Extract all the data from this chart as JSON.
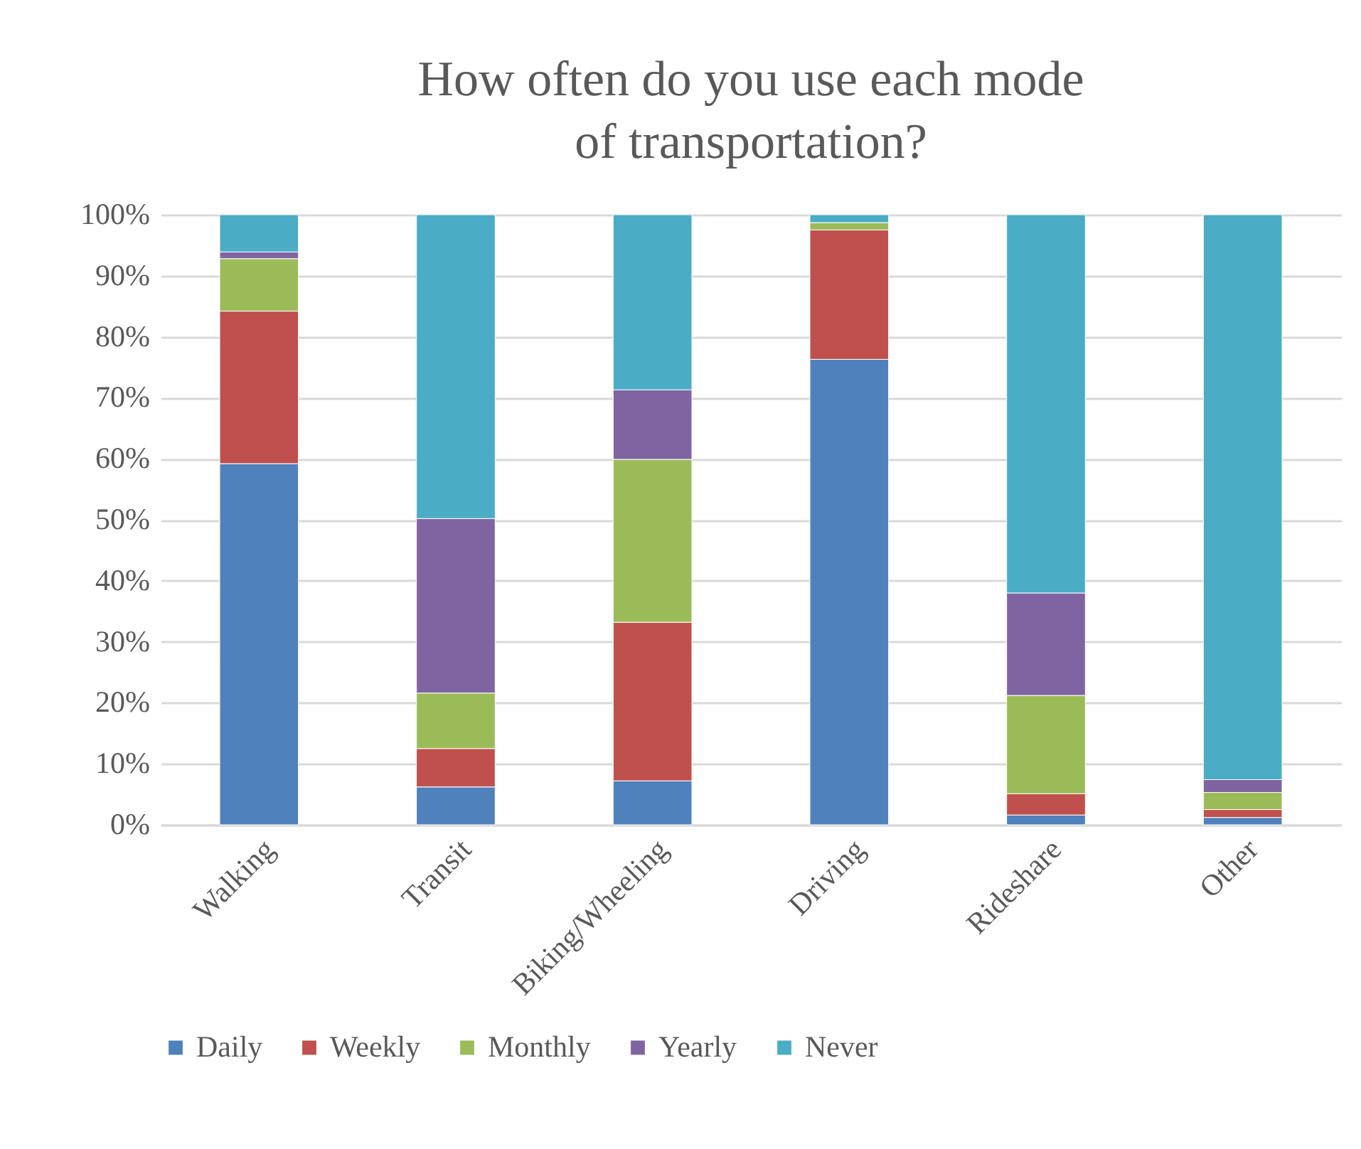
{
  "chart_data": {
    "type": "bar",
    "title": "How often do you use each mode of transportation?",
    "stacked": true,
    "categories": [
      "Walking",
      "Transit",
      "Biking/Wheeling",
      "Driving",
      "Rideshare",
      "Other"
    ],
    "series": [
      {
        "name": "Daily",
        "color": "#4f81bd",
        "values": [
          59.2,
          6.2,
          7.2,
          76.3,
          1.6,
          1.2
        ]
      },
      {
        "name": "Weekly",
        "color": "#c0504d",
        "values": [
          25.0,
          6.3,
          26.0,
          21.2,
          3.5,
          1.3
        ]
      },
      {
        "name": "Monthly",
        "color": "#9bbb59",
        "values": [
          8.6,
          9.1,
          26.7,
          1.2,
          16.1,
          2.8
        ]
      },
      {
        "name": "Yearly",
        "color": "#8064a2",
        "values": [
          1.1,
          28.6,
          11.4,
          0,
          16.8,
          2.1
        ]
      },
      {
        "name": "Never",
        "color": "#4bacc6",
        "values": [
          6.1,
          49.8,
          28.7,
          1.3,
          62.0,
          92.6
        ]
      }
    ],
    "ylim": [
      0,
      100
    ],
    "yticks": [
      {
        "value": 0,
        "label": "0%"
      },
      {
        "value": 10,
        "label": "10%"
      },
      {
        "value": 20,
        "label": "20%"
      },
      {
        "value": 30,
        "label": "30%"
      },
      {
        "value": 40,
        "label": "40%"
      },
      {
        "value": 50,
        "label": "50%"
      },
      {
        "value": 60,
        "label": "60%"
      },
      {
        "value": 70,
        "label": "70%"
      },
      {
        "value": 80,
        "label": "80%"
      },
      {
        "value": 90,
        "label": "90%"
      },
      {
        "value": 100,
        "label": "100%"
      }
    ],
    "grid": "y",
    "legend": "bottom"
  }
}
